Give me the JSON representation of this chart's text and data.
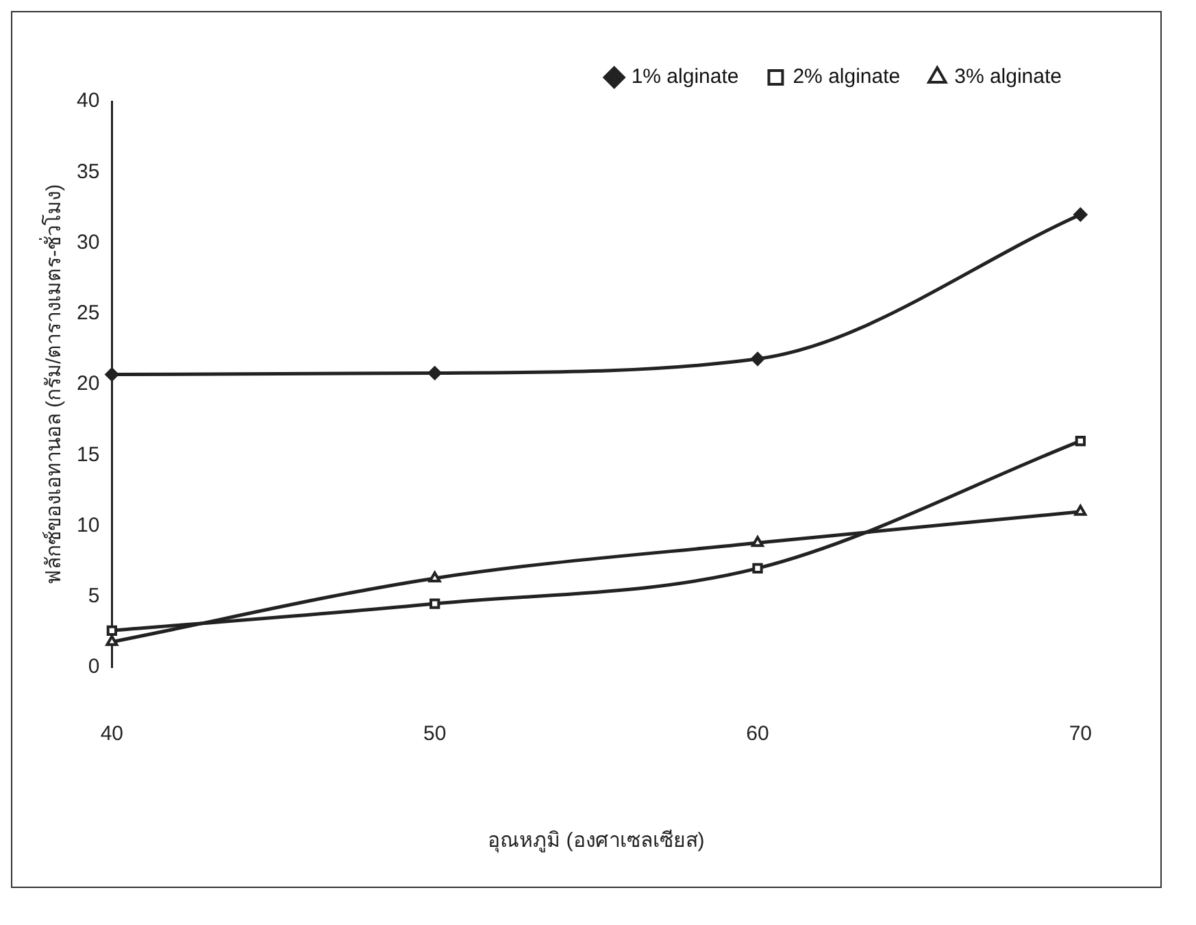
{
  "chart_data": {
    "type": "line",
    "xlabel": "อุณหภูมิ (องศาเซลเซียส)",
    "ylabel": "ฟลักซ์ของเอทานอล (กรัม/ตารางเมตร-ชั่วโมง)",
    "categories": [
      "40",
      "50",
      "60",
      "70"
    ],
    "series": [
      {
        "name": "1% alginate",
        "color": "#222222",
        "marker": "diamond",
        "values": [
          20.7,
          20.8,
          21.8,
          32.0
        ]
      },
      {
        "name": "2% alginate",
        "color": "#222222",
        "marker": "square",
        "values": [
          2.6,
          4.5,
          7.0,
          16.0
        ]
      },
      {
        "name": "3% alginate",
        "color": "#222222",
        "marker": "triangle",
        "values": [
          1.8,
          6.3,
          8.8,
          11.0
        ]
      }
    ],
    "ylim": [
      0,
      40
    ],
    "yticks": [
      0,
      5,
      10,
      15,
      20,
      25,
      30,
      35,
      40
    ],
    "grid": false,
    "legend": "top right",
    "line_style": "solid"
  }
}
